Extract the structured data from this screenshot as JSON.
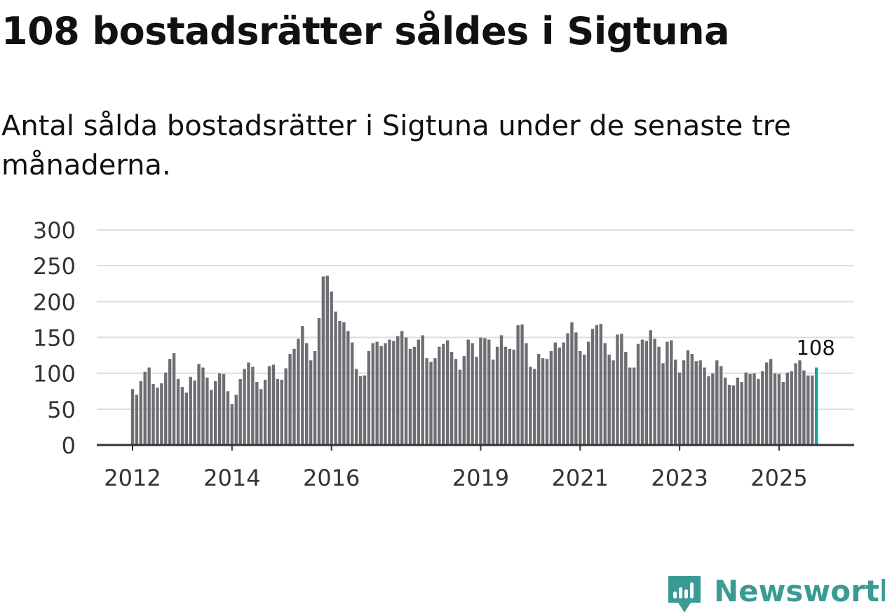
{
  "header": {
    "title": "108 bostadsrätter såldes i Sigtuna",
    "subtitle": "Antal sålda bostadsrätter i Sigtuna under de senaste tre månaderna."
  },
  "brand": {
    "name": "Newsworthy",
    "icon": "newsworthy-logo-icon"
  },
  "colors": {
    "bar": "#6d6e73",
    "highlight": "#15a39a",
    "grid": "#dddddd",
    "axis": "#333333",
    "brand": "#3a9b95"
  },
  "chart_data": {
    "type": "bar",
    "title": "",
    "xlabel": "",
    "ylabel": "",
    "ylim": [
      0,
      300
    ],
    "yticks": [
      0,
      50,
      100,
      150,
      200,
      250,
      300
    ],
    "ytick_labels": [
      "0",
      "50",
      "100",
      "150",
      "200",
      "250",
      "300"
    ],
    "xtick_labels": [
      "2012",
      "2014",
      "2016",
      "2019",
      "2021",
      "2023",
      "2025"
    ],
    "xtick_year_values": [
      2012,
      2014,
      2016,
      2019,
      2021,
      2023,
      2025
    ],
    "start": {
      "year": 2012,
      "month": 1
    },
    "end_label": "108",
    "values": [
      78,
      70,
      89,
      102,
      108,
      85,
      80,
      86,
      101,
      120,
      128,
      92,
      81,
      73,
      95,
      90,
      113,
      108,
      94,
      77,
      89,
      100,
      99,
      75,
      57,
      70,
      92,
      106,
      115,
      109,
      88,
      78,
      91,
      110,
      112,
      92,
      91,
      107,
      127,
      134,
      148,
      166,
      142,
      118,
      131,
      177,
      235,
      236,
      214,
      186,
      173,
      171,
      159,
      143,
      106,
      96,
      97,
      131,
      142,
      144,
      138,
      142,
      147,
      145,
      152,
      159,
      150,
      134,
      137,
      147,
      153,
      121,
      116,
      121,
      137,
      141,
      146,
      130,
      120,
      105,
      124,
      147,
      142,
      123,
      150,
      149,
      147,
      119,
      137,
      153,
      137,
      134,
      133,
      167,
      168,
      142,
      109,
      106,
      127,
      121,
      120,
      131,
      143,
      136,
      143,
      156,
      171,
      157,
      131,
      126,
      144,
      162,
      167,
      169,
      142,
      126,
      118,
      154,
      155,
      130,
      108,
      108,
      141,
      147,
      145,
      160,
      148,
      137,
      114,
      144,
      146,
      119,
      101,
      118,
      132,
      127,
      117,
      118,
      108,
      96,
      100,
      118,
      110,
      94,
      84,
      83,
      94,
      88,
      101,
      99,
      100,
      92,
      103,
      115,
      120,
      100,
      99,
      88,
      101,
      103,
      114,
      118,
      104,
      97,
      97,
      108
    ]
  }
}
